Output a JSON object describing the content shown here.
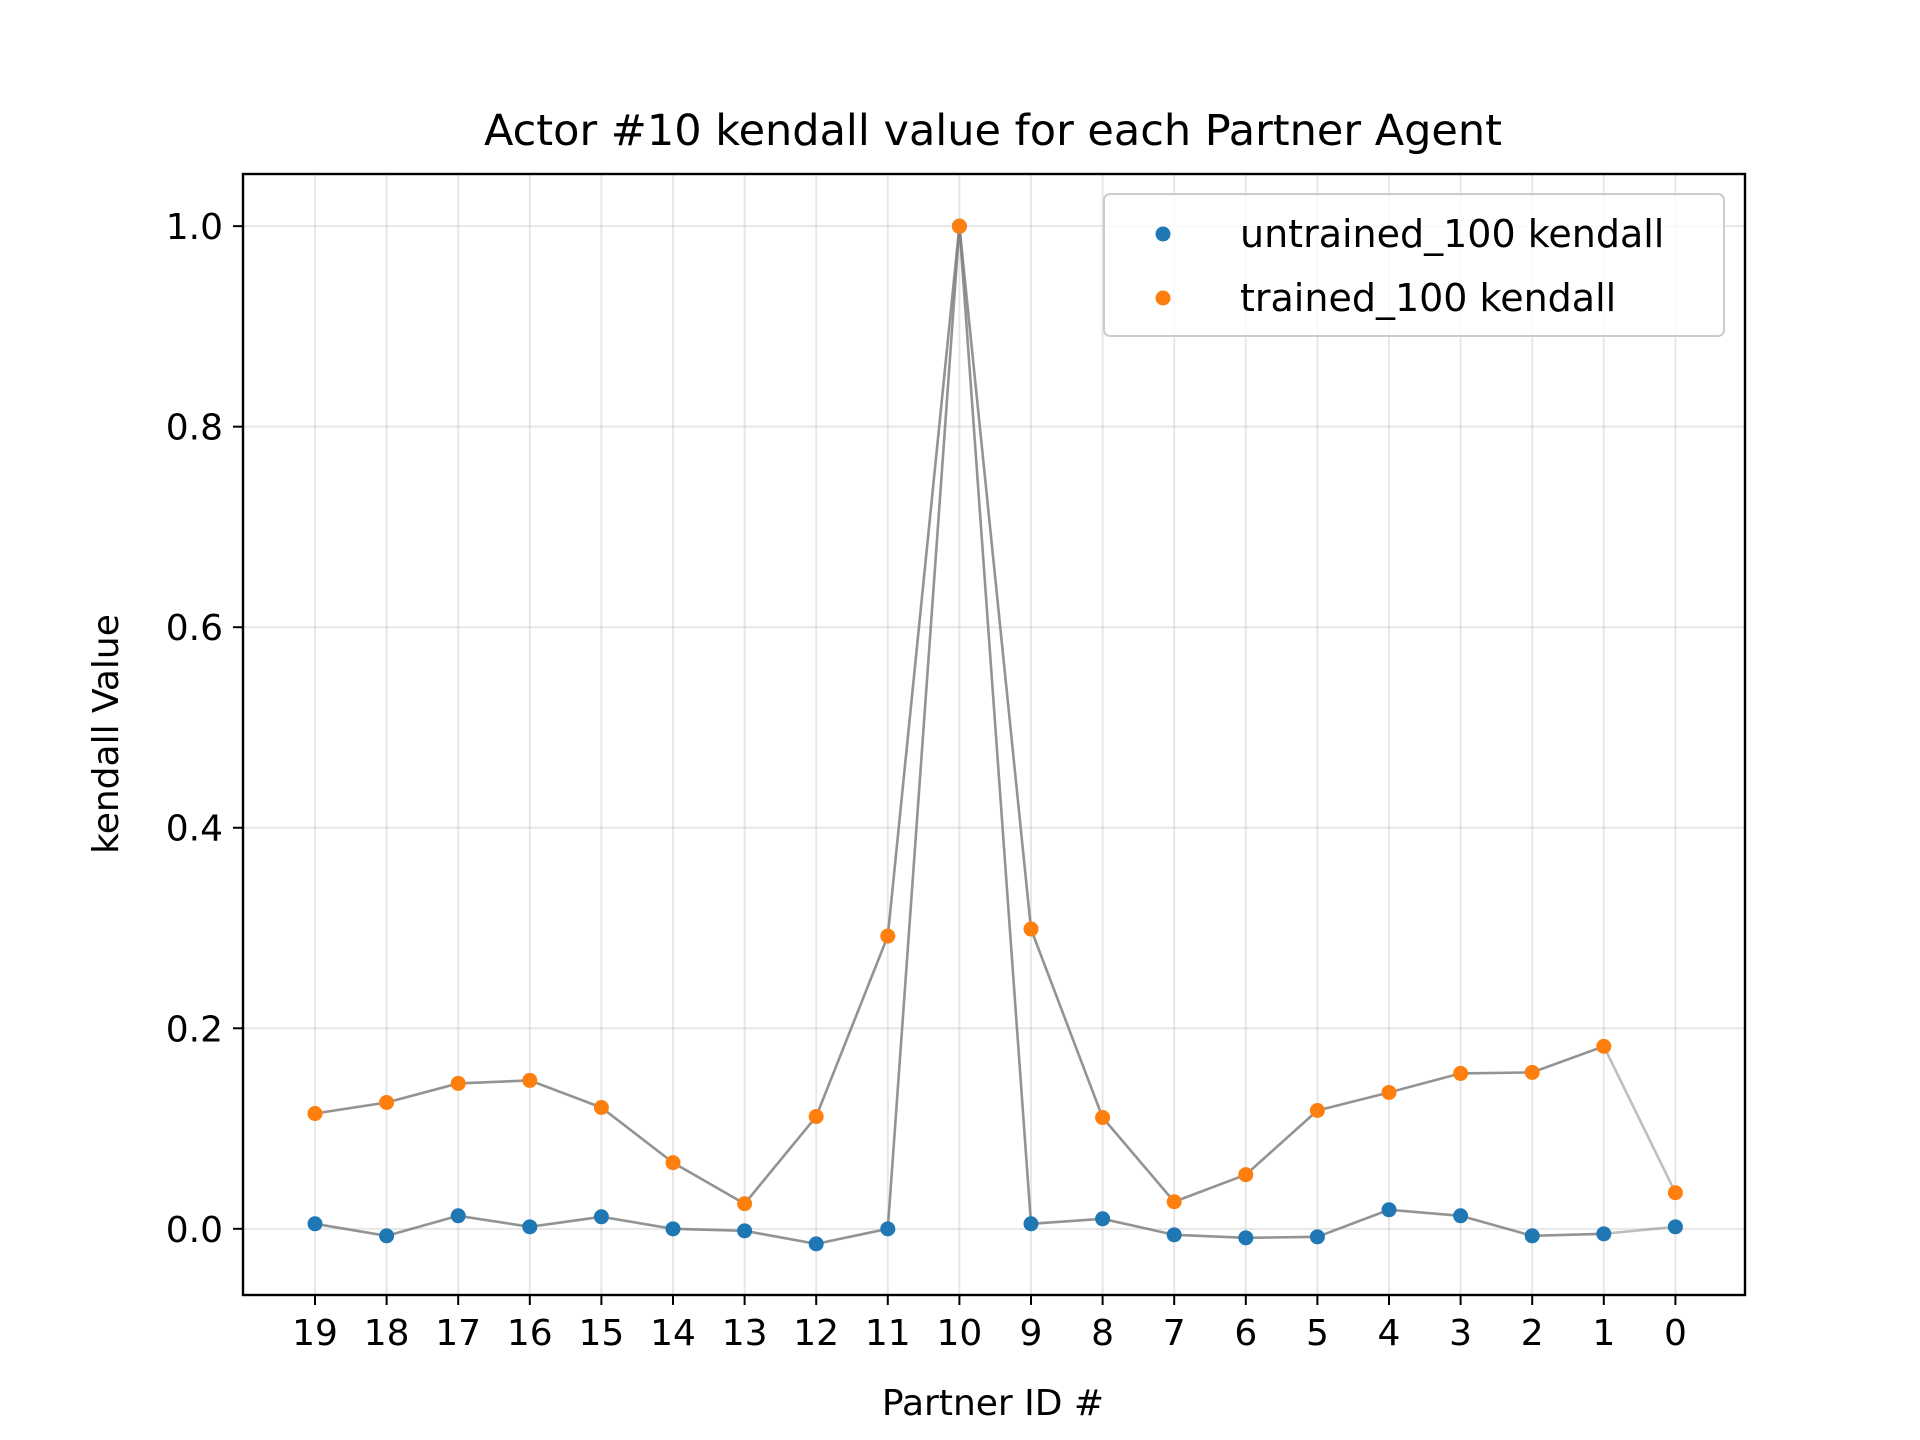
{
  "chart_data": {
    "type": "scatter",
    "title": "Actor #10 kendall value for each Partner Agent",
    "xlabel": "Partner ID #",
    "ylabel": "kendall Value",
    "ylim": [
      -0.066,
      1.052
    ],
    "yticks": [
      "0.0",
      "0.2",
      "0.4",
      "0.6",
      "0.8",
      "1.0"
    ],
    "categories": [
      "19",
      "18",
      "17",
      "16",
      "15",
      "14",
      "13",
      "12",
      "11",
      "10",
      "9",
      "8",
      "7",
      "6",
      "5",
      "4",
      "3",
      "2",
      "1",
      "0"
    ],
    "grid": true,
    "legend_position": "top-right",
    "connector_color": "#808080",
    "series": [
      {
        "name": "untrained_100 kendall",
        "color": "#1f77b4",
        "values": [
          0.005,
          -0.007,
          0.013,
          0.002,
          0.012,
          0.0,
          -0.002,
          -0.015,
          0.0,
          1.0,
          0.005,
          0.01,
          -0.006,
          -0.009,
          -0.008,
          0.019,
          0.013,
          -0.007,
          -0.005,
          0.002
        ]
      },
      {
        "name": "trained_100 kendall",
        "color": "#ff7f0e",
        "values": [
          0.115,
          0.126,
          0.145,
          0.148,
          0.121,
          0.066,
          0.025,
          0.112,
          0.292,
          1.0,
          0.299,
          0.111,
          0.027,
          0.054,
          0.118,
          0.136,
          0.155,
          0.156,
          0.182,
          0.036
        ]
      }
    ]
  }
}
